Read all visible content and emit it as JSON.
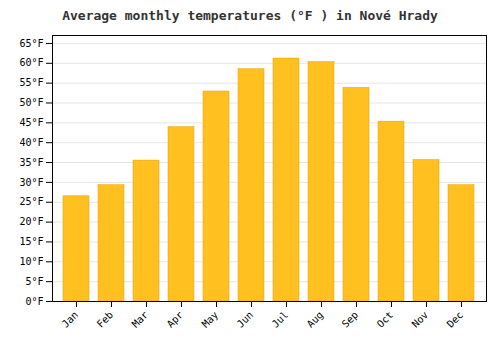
{
  "chart_data": {
    "type": "bar",
    "title": "Average monthly temperatures (°F ) in Nové Hrady",
    "categories": [
      "Jan",
      "Feb",
      "Mar",
      "Apr",
      "May",
      "Jun",
      "Jul",
      "Aug",
      "Sep",
      "Oct",
      "Nov",
      "Dec"
    ],
    "values": [
      26.5,
      29.3,
      35.5,
      43.9,
      52.9,
      58.5,
      61.2,
      60.3,
      53.8,
      45.3,
      35.6,
      29.3
    ],
    "color": "#FFC020",
    "ylim": [
      0,
      67
    ],
    "yticks": [
      {
        "value": 0,
        "label": "0°F"
      },
      {
        "value": 5,
        "label": "5°F"
      },
      {
        "value": 10,
        "label": "10°F"
      },
      {
        "value": 15,
        "label": "15°F"
      },
      {
        "value": 20,
        "label": "20°F"
      },
      {
        "value": 25,
        "label": "25°F"
      },
      {
        "value": 30,
        "label": "30°F"
      },
      {
        "value": 35,
        "label": "35°F"
      },
      {
        "value": 40,
        "label": "40°F"
      },
      {
        "value": 45,
        "label": "45°F"
      },
      {
        "value": 50,
        "label": "50°F"
      },
      {
        "value": 55,
        "label": "55°F"
      },
      {
        "value": 60,
        "label": "60°F"
      },
      {
        "value": 65,
        "label": "65°F"
      }
    ],
    "grid": true
  }
}
